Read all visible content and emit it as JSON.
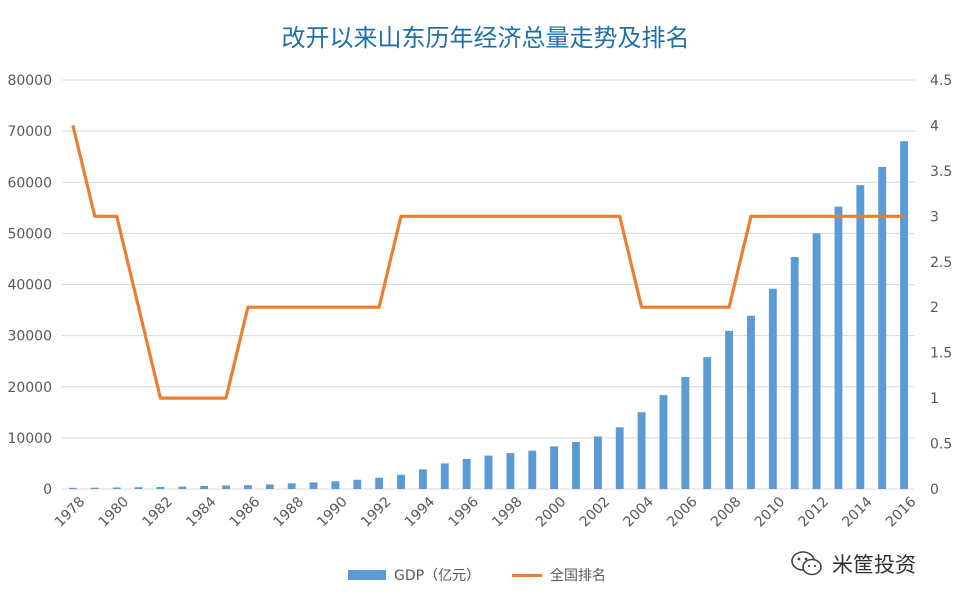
{
  "chart_data": {
    "type": "bar+line",
    "title": "改开以来山东历年经济总量走势及排名",
    "categories": [
      "1978",
      "1979",
      "1980",
      "1981",
      "1982",
      "1983",
      "1984",
      "1985",
      "1986",
      "1987",
      "1988",
      "1989",
      "1990",
      "1991",
      "1992",
      "1993",
      "1994",
      "1995",
      "1996",
      "1997",
      "1998",
      "1999",
      "2000",
      "2001",
      "2002",
      "2003",
      "2004",
      "2005",
      "2006",
      "2007",
      "2008",
      "2009",
      "2010",
      "2011",
      "2012",
      "2013",
      "2014",
      "2015",
      "2016"
    ],
    "tick_labels": [
      "1978",
      "1980",
      "1982",
      "1984",
      "1986",
      "1988",
      "1990",
      "1992",
      "1994",
      "1996",
      "1998",
      "2000",
      "2002",
      "2004",
      "2006",
      "2008",
      "2010",
      "2012",
      "2014",
      "2016"
    ],
    "series": [
      {
        "name": "GDP（亿元）",
        "type": "bar",
        "axis": "left",
        "color": "#5b9bd5",
        "values": [
          225,
          251,
          292,
          346,
          395,
          459,
          581,
          681,
          742,
          892,
          1117,
          1293,
          1511,
          1810,
          2196,
          2770,
          3844,
          5002,
          5883,
          6537,
          7021,
          7493,
          8337,
          9195,
          10275,
          12078,
          15021,
          18366,
          21900,
          25777,
          30933,
          33896,
          39170,
          45362,
          50013,
          55230,
          59427,
          63002,
          68024
        ]
      },
      {
        "name": "全国排名",
        "type": "line",
        "axis": "right",
        "color": "#ed7d31",
        "values": [
          4,
          3,
          3,
          2,
          1,
          1,
          1,
          1,
          2,
          2,
          2,
          2,
          2,
          2,
          2,
          3,
          3,
          3,
          3,
          3,
          3,
          3,
          3,
          3,
          3,
          3,
          2,
          2,
          2,
          2,
          2,
          3,
          3,
          3,
          3,
          3,
          3,
          3,
          3
        ]
      }
    ],
    "y_left": {
      "range": [
        0,
        80000
      ],
      "ticks": [
        "0",
        "10000",
        "20000",
        "30000",
        "40000",
        "50000",
        "60000",
        "70000",
        "80000"
      ]
    },
    "y_right": {
      "range": [
        0,
        4.5
      ],
      "ticks": [
        "0",
        "0.5",
        "1",
        "1.5",
        "2",
        "2.5",
        "3",
        "3.5",
        "4",
        "4.5"
      ]
    },
    "grid": true,
    "legend_position": "bottom"
  },
  "legend": {
    "gdp_label": "GDP（亿元）",
    "rank_label": "全国排名"
  },
  "watermark": {
    "text": "米筐投资"
  },
  "colors": {
    "bar": "#5b9bd5",
    "line": "#ed7d31",
    "title": "#1f6fa8",
    "grid": "#d9d9d9",
    "axis_text": "#595959"
  }
}
